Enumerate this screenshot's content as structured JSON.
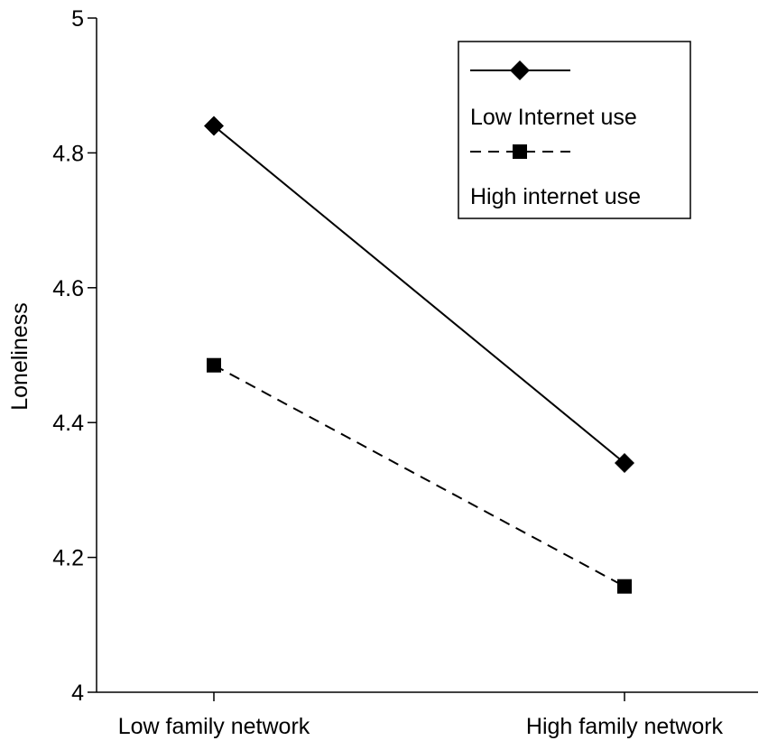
{
  "chart_data": {
    "type": "line",
    "title": "",
    "xlabel": "",
    "ylabel": "Loneliness",
    "categories": [
      "Low family network",
      "High family network"
    ],
    "ylim": [
      4,
      5
    ],
    "yticks": [
      "4",
      "4.2",
      "4.4",
      "4.6",
      "4.8",
      "5"
    ],
    "grid": false,
    "legend_position": "top-right",
    "series": [
      {
        "name": "Low Internet use",
        "values": [
          4.84,
          4.34
        ],
        "line_style": "solid",
        "marker": "diamond",
        "color": "#000000"
      },
      {
        "name": "High internet use",
        "values": [
          4.485,
          4.157
        ],
        "line_style": "dashed",
        "marker": "square",
        "color": "#000000"
      }
    ]
  }
}
